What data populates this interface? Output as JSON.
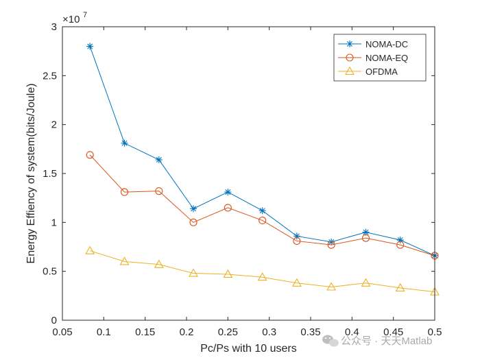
{
  "chart_data": {
    "type": "line",
    "title": "",
    "xlabel": "Pc/Ps with 10 users",
    "ylabel": "Energy Effiency of system(bits/Joule)",
    "y_scale_label": "×10",
    "y_scale_exponent": "7",
    "xlim": [
      0.05,
      0.5
    ],
    "ylim": [
      0,
      3
    ],
    "grid": false,
    "legend_position": "top-right",
    "x_ticks": [
      0.05,
      0.1,
      0.15,
      0.2,
      0.25,
      0.3,
      0.35,
      0.4,
      0.45,
      0.5
    ],
    "x_tick_labels": [
      "0.05",
      "0.1",
      "0.15",
      "0.2",
      "0.25",
      "0.3",
      "0.35",
      "0.4",
      "0.45",
      "0.5"
    ],
    "y_ticks": [
      0,
      0.5,
      1,
      1.5,
      2,
      2.5,
      3
    ],
    "y_tick_labels": [
      "0",
      "0.5",
      "1",
      "1.5",
      "2",
      "2.5",
      "3"
    ],
    "x": [
      0.0833,
      0.125,
      0.1667,
      0.2083,
      0.25,
      0.2917,
      0.3333,
      0.375,
      0.4167,
      0.4583,
      0.5
    ],
    "series": [
      {
        "name": "NOMA-DC",
        "color": "#0072BD",
        "marker": "asterisk",
        "values": [
          2.8,
          1.81,
          1.64,
          1.14,
          1.31,
          1.12,
          0.86,
          0.8,
          0.9,
          0.82,
          0.66
        ]
      },
      {
        "name": "NOMA-EQ",
        "color": "#D95319",
        "marker": "circle",
        "values": [
          1.69,
          1.31,
          1.32,
          1.0,
          1.15,
          1.02,
          0.81,
          0.77,
          0.84,
          0.77,
          0.66
        ]
      },
      {
        "name": "OFDMA",
        "color": "#EDB120",
        "marker": "triangle",
        "values": [
          0.71,
          0.6,
          0.57,
          0.48,
          0.47,
          0.44,
          0.38,
          0.34,
          0.38,
          0.33,
          0.29
        ]
      }
    ]
  },
  "watermark": {
    "text": "公众号 · 天天Matlab",
    "icon": "wechat-icon"
  }
}
